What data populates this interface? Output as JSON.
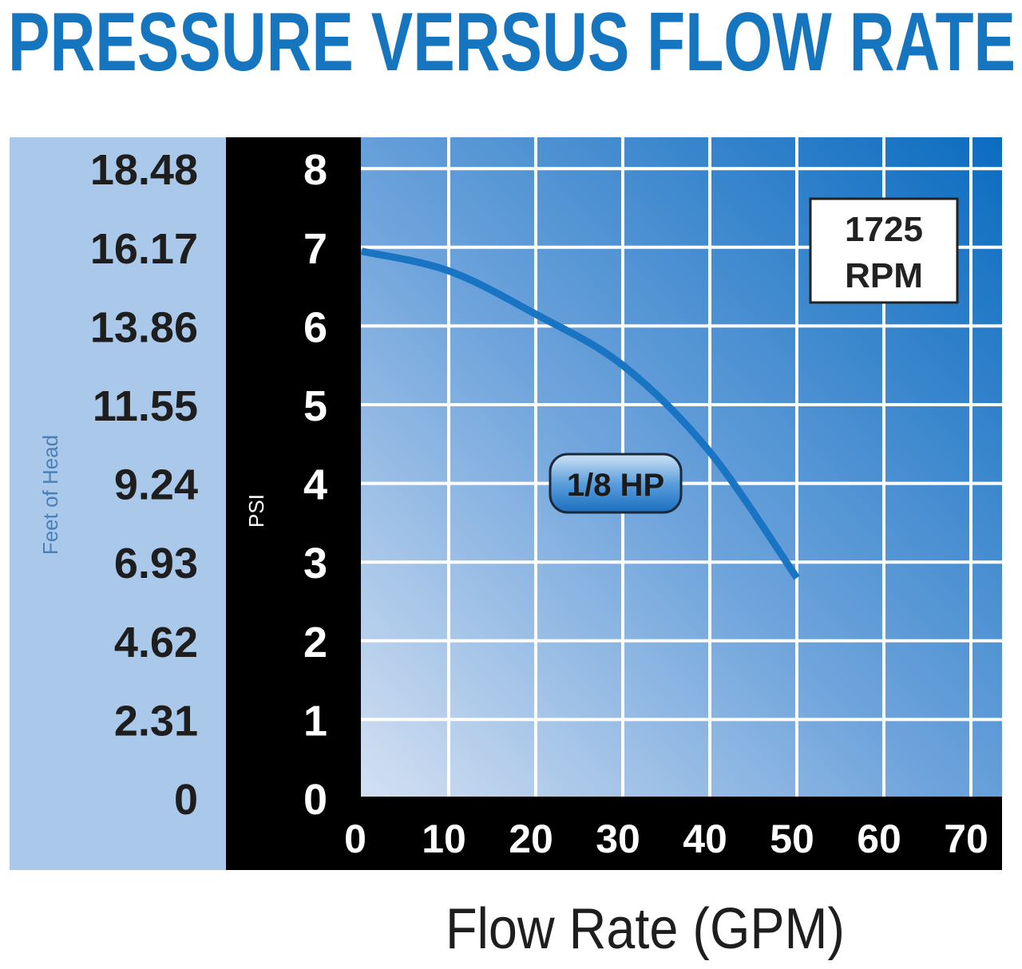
{
  "chart_data": {
    "type": "line",
    "title": "PRESSURE VERSUS FLOW RATE",
    "xlabel": "Flow Rate (GPM)",
    "ylabel": "PSI",
    "ylabel_secondary": "Feet of Head",
    "xlim": [
      0,
      73
    ],
    "ylim": [
      0,
      8.4
    ],
    "x_ticks": [
      "0",
      "10",
      "20",
      "30",
      "40",
      "50",
      "60",
      "70"
    ],
    "y_ticks": [
      "0",
      "1",
      "2",
      "3",
      "4",
      "5",
      "6",
      "7",
      "8"
    ],
    "y_ticks_secondary": [
      "0",
      "2.31",
      "4.62",
      "6.93",
      "9.24",
      "11.55",
      "13.86",
      "16.17",
      "18.48"
    ],
    "grid": true,
    "annotation_rpm": [
      "1725",
      "RPM"
    ],
    "series": [
      {
        "name": "1/8 HP",
        "x": [
          0,
          10,
          20,
          30,
          40,
          50
        ],
        "y": [
          6.95,
          6.7,
          6.15,
          5.5,
          4.4,
          2.8
        ]
      }
    ],
    "colors": {
      "title": "#1575bf",
      "curve": "#1a74c4",
      "left_panel": "#a9c8ea",
      "axis_panel": "#000000"
    }
  }
}
